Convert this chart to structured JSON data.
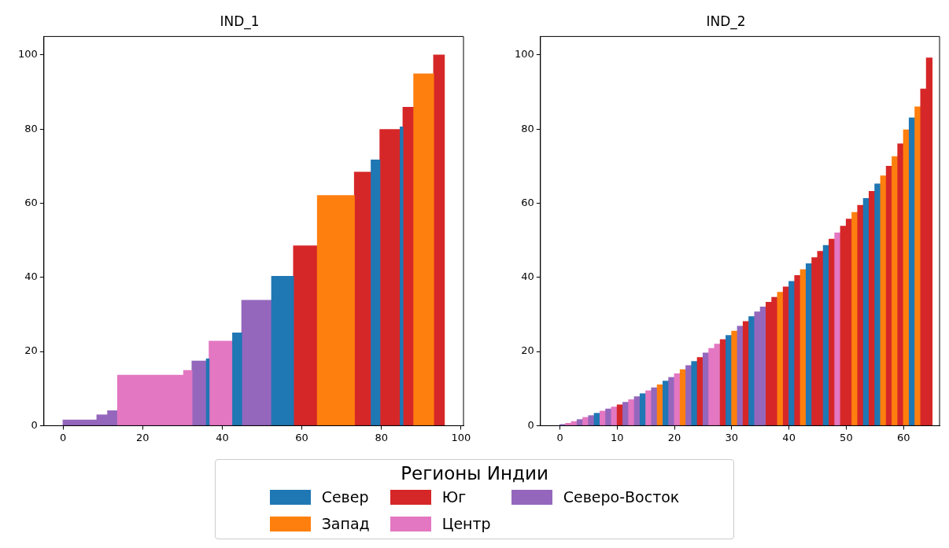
{
  "chart_data": [
    {
      "type": "histogram",
      "title": "IND_1",
      "bins": [
        0,
        8.5,
        11.2,
        13.7,
        30.3,
        32.4,
        36.0,
        36.7,
        42.6,
        44.9,
        52.4,
        57.9,
        63.9,
        73.2,
        77.4,
        79.6,
        84.7,
        85.4,
        88.1,
        93.1,
        95.8
      ],
      "series": [
        {
          "name": "Север",
          "color": "#1f77b4",
          "values": [
            null,
            null,
            null,
            null,
            null,
            null,
            18.0,
            null,
            25.0,
            null,
            40.3,
            null,
            null,
            null,
            71.7,
            null,
            80.6,
            null,
            null,
            null
          ]
        },
        {
          "name": "Запад",
          "color": "#ff7f0e",
          "values": [
            null,
            null,
            null,
            null,
            null,
            null,
            null,
            null,
            null,
            null,
            null,
            null,
            62.1,
            null,
            null,
            null,
            null,
            null,
            94.9,
            null
          ]
        },
        {
          "name": "Юг",
          "color": "#d62728",
          "values": [
            null,
            null,
            null,
            null,
            null,
            null,
            null,
            null,
            null,
            null,
            null,
            48.5,
            null,
            68.4,
            null,
            79.9,
            null,
            85.9,
            null,
            100.0
          ]
        },
        {
          "name": "Центр",
          "color": "#e377c2",
          "values": [
            null,
            null,
            null,
            13.6,
            14.9,
            null,
            null,
            22.8,
            null,
            null,
            null,
            null,
            null,
            null,
            null,
            null,
            null,
            null,
            null,
            null
          ]
        },
        {
          "name": "Северо-Восток",
          "color": "#9467bd",
          "values": [
            1.5,
            2.9,
            4.0,
            null,
            null,
            17.4,
            null,
            null,
            null,
            33.8,
            null,
            null,
            null,
            null,
            null,
            null,
            null,
            null,
            null,
            null
          ]
        }
      ],
      "xlim": [
        -4.8,
        100.6
      ],
      "xticks": [
        0,
        20,
        40,
        60,
        80,
        100
      ],
      "ylim": [
        0,
        105
      ],
      "yticks": [
        0,
        20,
        40,
        60,
        80,
        100
      ],
      "grid": false,
      "legend": "bottom",
      "legend_title": "Регионы Индии"
    },
    {
      "type": "histogram",
      "title": "IND_2",
      "bins": [
        0,
        1,
        2,
        3,
        4,
        5,
        6,
        7,
        8,
        9,
        10,
        11,
        12,
        13,
        14,
        15,
        16,
        17,
        18,
        19,
        20,
        21,
        22,
        23,
        24,
        25,
        26,
        27,
        28,
        29,
        30,
        31,
        32,
        33,
        34,
        35,
        36,
        37,
        38,
        39,
        40,
        41,
        42,
        43,
        44,
        45,
        46,
        47,
        48,
        49,
        50,
        51,
        52,
        53,
        54,
        55,
        56,
        57,
        58,
        59,
        60,
        61,
        62,
        63,
        64,
        65
      ],
      "values": [
        0.3,
        0.6,
        1.1,
        1.6,
        2.2,
        2.7,
        3.3,
        3.9,
        4.5,
        5.0,
        5.6,
        6.3,
        7.0,
        7.8,
        8.6,
        9.4,
        10.2,
        11.0,
        12.0,
        13.0,
        14.0,
        15.1,
        16.2,
        17.3,
        18.4,
        19.6,
        20.8,
        22.0,
        23.2,
        24.3,
        25.5,
        26.8,
        28.1,
        29.4,
        30.7,
        32.0,
        33.3,
        34.6,
        36.0,
        37.4,
        38.9,
        40.5,
        42.1,
        43.7,
        45.3,
        47.0,
        48.6,
        50.3,
        52.0,
        53.8,
        55.7,
        57.5,
        59.4,
        61.3,
        63.2,
        65.2,
        67.4,
        70.0,
        72.6,
        76.0,
        79.8,
        83.0,
        86.0,
        90.8,
        99.2
      ],
      "colors": [
        "#9467bd",
        "#e377c2",
        "#e377c2",
        "#9467bd",
        "#e377c2",
        "#9467bd",
        "#1f77b4",
        "#e377c2",
        "#9467bd",
        "#e377c2",
        "#d62728",
        "#9467bd",
        "#e377c2",
        "#9467bd",
        "#1f77b4",
        "#e377c2",
        "#9467bd",
        "#ff7f0e",
        "#1f77b4",
        "#9467bd",
        "#e377c2",
        "#ff7f0e",
        "#9467bd",
        "#1f77b4",
        "#d62728",
        "#9467bd",
        "#e377c2",
        "#e377c2",
        "#d62728",
        "#1f77b4",
        "#ff7f0e",
        "#9467bd",
        "#d62728",
        "#1f77b4",
        "#9467bd",
        "#9467bd",
        "#d62728",
        "#d62728",
        "#ff7f0e",
        "#d62728",
        "#1f77b4",
        "#d62728",
        "#ff7f0e",
        "#1f77b4",
        "#d62728",
        "#d62728",
        "#1f77b4",
        "#d62728",
        "#e377c2",
        "#d62728",
        "#d62728",
        "#ff7f0e",
        "#d62728",
        "#1f77b4",
        "#d62728",
        "#1f77b4",
        "#ff7f0e",
        "#d62728",
        "#ff7f0e",
        "#d62728",
        "#ff7f0e",
        "#1f77b4",
        "#ff7f0e",
        "#d62728",
        "#d62728"
      ],
      "xlim": [
        -3.4,
        66.3
      ],
      "xticks": [
        0,
        10,
        20,
        30,
        40,
        50,
        60
      ],
      "ylim": [
        0,
        105
      ],
      "yticks": [
        0,
        20,
        40,
        60,
        80,
        100
      ],
      "grid": false
    }
  ]
}
